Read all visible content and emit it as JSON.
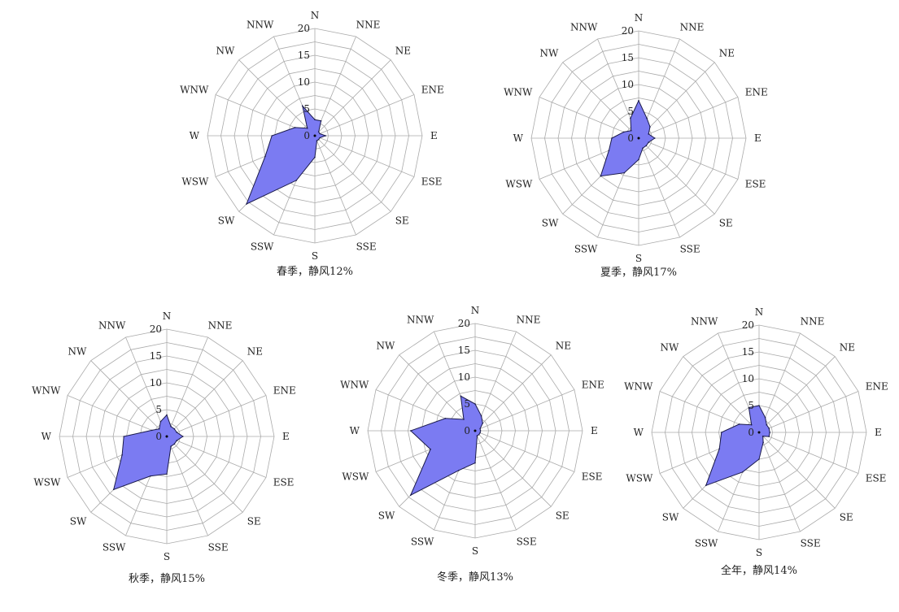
{
  "chart_data": [
    {
      "type": "radar",
      "directions": [
        "N",
        "NNE",
        "NE",
        "ENE",
        "E",
        "ESE",
        "SE",
        "SSE",
        "S",
        "SSW",
        "SW",
        "WSW",
        "W",
        "WNW",
        "NW",
        "NNW"
      ],
      "radial_ticks": [
        "0",
        "5",
        "10",
        "15",
        "20"
      ],
      "rlim": [
        0,
        20
      ],
      "values": [
        3,
        3,
        1,
        1,
        2,
        1,
        1,
        1,
        4,
        9,
        18,
        10,
        8,
        4,
        2,
        6
      ],
      "caption": "春季，静风12%"
    },
    {
      "type": "radar",
      "directions": [
        "N",
        "NNE",
        "NE",
        "ENE",
        "E",
        "ESE",
        "SE",
        "SSE",
        "S",
        "SSW",
        "SW",
        "WSW",
        "W",
        "WNW",
        "NW",
        "NNW"
      ],
      "radial_ticks": [
        "0",
        "5",
        "10",
        "15",
        "20"
      ],
      "rlim": [
        0,
        20
      ],
      "values": [
        7,
        4,
        3,
        2,
        3,
        2,
        2,
        2,
        4,
        7,
        10,
        6,
        5,
        3,
        2,
        4
      ],
      "caption": "夏季，静风17%"
    },
    {
      "type": "radar",
      "directions": [
        "N",
        "NNE",
        "NE",
        "ENE",
        "E",
        "ESE",
        "SE",
        "SSE",
        "S",
        "SSW",
        "SW",
        "WSW",
        "W",
        "WNW",
        "NW",
        "NNW"
      ],
      "radial_ticks": [
        "0",
        "5",
        "10",
        "15",
        "20"
      ],
      "rlim": [
        0,
        20
      ],
      "values": [
        4,
        2,
        2,
        2,
        3,
        2,
        2,
        2,
        7,
        8,
        14,
        9,
        8,
        3,
        2,
        3
      ],
      "caption": "秋季，静风15%"
    },
    {
      "type": "radar",
      "directions": [
        "N",
        "NNE",
        "NE",
        "ENE",
        "E",
        "ESE",
        "SE",
        "SSE",
        "S",
        "SSW",
        "SW",
        "WSW",
        "W",
        "WNW",
        "NW",
        "NNW"
      ],
      "radial_ticks": [
        "0",
        "5",
        "10",
        "15",
        "20"
      ],
      "rlim": [
        0,
        20
      ],
      "values": [
        5,
        3,
        2,
        1,
        1,
        1,
        1,
        1,
        6,
        8,
        17,
        9,
        12,
        6,
        3,
        7
      ],
      "caption": "冬季，静风13%"
    },
    {
      "type": "radar",
      "directions": [
        "N",
        "NNE",
        "NE",
        "ENE",
        "E",
        "ESE",
        "SE",
        "SSE",
        "S",
        "SSW",
        "SW",
        "WSW",
        "W",
        "WNW",
        "NW",
        "NNW"
      ],
      "radial_ticks": [
        "0",
        "5",
        "10",
        "15",
        "20"
      ],
      "rlim": [
        0,
        20
      ],
      "values": [
        5,
        3,
        2,
        2,
        2,
        2,
        1,
        2,
        5,
        8,
        14,
        8,
        7,
        4,
        2,
        5
      ],
      "caption": "全年，静风14%"
    }
  ]
}
